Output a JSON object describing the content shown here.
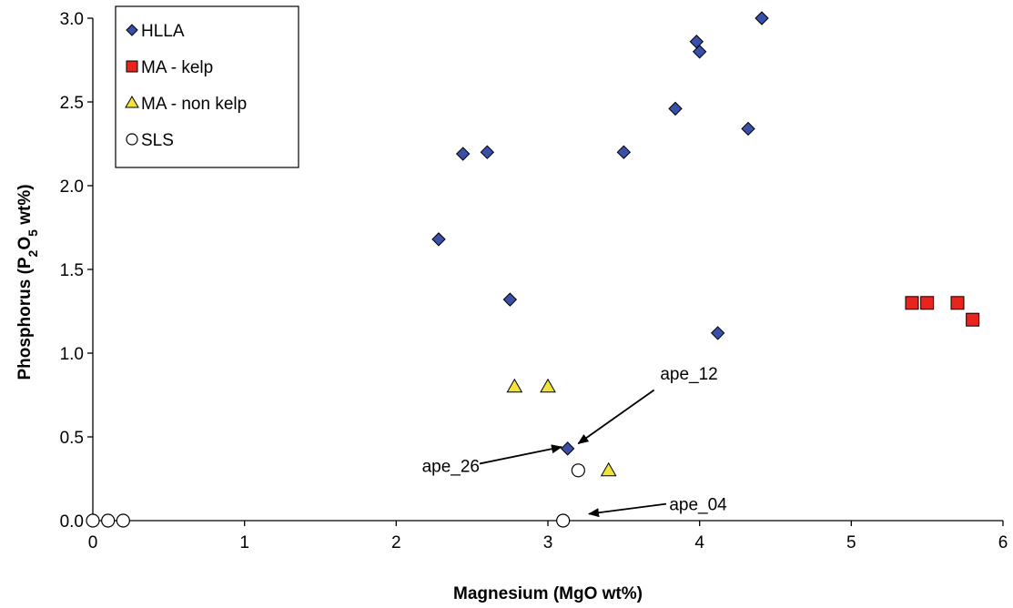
{
  "chart_data": {
    "type": "scatter",
    "xlabel": "Magnesium (MgO wt%)",
    "ylabel": {
      "parts": [
        {
          "text": "Phosphorus (P",
          "shift": "none"
        },
        {
          "text": "2",
          "shift": "sub"
        },
        {
          "text": "O",
          "shift": "none"
        },
        {
          "text": "5",
          "shift": "sub"
        },
        {
          "text": " wt%)",
          "shift": "none"
        }
      ]
    },
    "xlim": [
      0,
      6
    ],
    "ylim": [
      0,
      3
    ],
    "xticks": [
      0,
      1,
      2,
      3,
      4,
      5,
      6
    ],
    "xtick_labels": [
      "0",
      "1",
      "2",
      "3",
      "4",
      "5",
      "6"
    ],
    "yticks": [
      0,
      0.5,
      1,
      1.5,
      2,
      2.5,
      3
    ],
    "ytick_labels": [
      "0.0",
      "0.5",
      "1.0",
      "1.5",
      "2.0",
      "2.5",
      "3.0"
    ],
    "grid": false,
    "legend_position": "top-left",
    "series": [
      {
        "name": "HLLA",
        "marker": "diamond",
        "color": "#3a4fa8",
        "points": [
          [
            2.28,
            1.68
          ],
          [
            2.44,
            2.19
          ],
          [
            2.6,
            2.2
          ],
          [
            2.75,
            1.32
          ],
          [
            3.13,
            0.43
          ],
          [
            3.5,
            2.2
          ],
          [
            3.84,
            2.46
          ],
          [
            3.98,
            2.86
          ],
          [
            4.0,
            2.8
          ],
          [
            4.12,
            1.12
          ],
          [
            4.32,
            2.34
          ],
          [
            4.41,
            3.0
          ]
        ]
      },
      {
        "name": "MA - kelp",
        "marker": "square",
        "color": "#e8241f",
        "points": [
          [
            5.4,
            1.3
          ],
          [
            5.5,
            1.3
          ],
          [
            5.7,
            1.3
          ],
          [
            5.8,
            1.2
          ]
        ]
      },
      {
        "name": "MA - non kelp",
        "marker": "triangle",
        "color": "#f2e33b",
        "points": [
          [
            2.78,
            0.8
          ],
          [
            3.0,
            0.8
          ],
          [
            3.4,
            0.3
          ]
        ]
      },
      {
        "name": "SLS",
        "marker": "circle",
        "color": "#ffffff",
        "points": [
          [
            0.0,
            0.0
          ],
          [
            0.1,
            0.0
          ],
          [
            0.2,
            0.0
          ],
          [
            3.1,
            0.0
          ],
          [
            3.2,
            0.3
          ]
        ]
      }
    ],
    "annotations": [
      {
        "text": "ape_12",
        "text_at": [
          3.74,
          0.88
        ],
        "text_anchor": "start",
        "arrow_from": [
          3.7,
          0.78
        ],
        "arrow_to": [
          3.2,
          0.46
        ]
      },
      {
        "text": "ape_26",
        "text_at": [
          2.55,
          0.33
        ],
        "text_anchor": "end",
        "arrow_from": [
          2.55,
          0.34
        ],
        "arrow_to": [
          3.09,
          0.44
        ]
      },
      {
        "text": "ape_04",
        "text_at": [
          3.8,
          0.1
        ],
        "text_anchor": "start",
        "arrow_from": [
          3.78,
          0.1
        ],
        "arrow_to": [
          3.27,
          0.04
        ]
      }
    ]
  }
}
